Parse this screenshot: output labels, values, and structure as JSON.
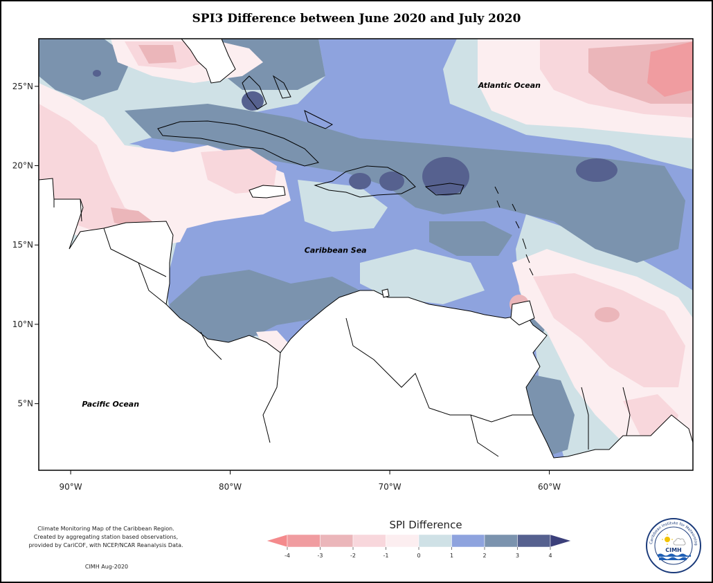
{
  "title": "SPI3 Difference between June 2020 and July 2020",
  "map": {
    "lon_range": [
      -92,
      -51
    ],
    "lat_range": [
      0.8,
      28
    ],
    "longitude_ticks": [
      {
        "value": -90,
        "label": "90°W"
      },
      {
        "value": -80,
        "label": "80°W"
      },
      {
        "value": -70,
        "label": "70°W"
      },
      {
        "value": -60,
        "label": "60°W"
      }
    ],
    "latitude_ticks": [
      {
        "value": 25,
        "label": "25°N"
      },
      {
        "value": 20,
        "label": "20°N"
      },
      {
        "value": 15,
        "label": "15°N"
      },
      {
        "value": 10,
        "label": "10°N"
      },
      {
        "value": 5,
        "label": "5°N"
      }
    ],
    "ocean_labels": {
      "atlantic": "Atlantic Ocean",
      "caribbean": "Caribbean Sea",
      "pacific": "Pacific Ocean"
    },
    "ocean_label_positions": {
      "atlantic": {
        "lon": -62.5,
        "lat": 24.9
      },
      "caribbean": {
        "lon": -73.4,
        "lat": 14.5
      },
      "pacific": {
        "lon": -87.5,
        "lat": 4.8
      }
    }
  },
  "legend": {
    "title": "SPI Difference",
    "tick_labels": [
      "-4",
      "-3",
      "-2",
      "-1",
      "0",
      "1",
      "2",
      "3",
      "4"
    ],
    "colors": {
      "lt_-4": "#f48a8c",
      "-4_-3": "#f09ca0",
      "-3_-2": "#ebb6ba",
      "-2_-1": "#f8d7dc",
      "-1_0": "#fceef0",
      "0_1": "#cfe1e6",
      "1_2": "#8ea3de",
      "2_3": "#7b93ae",
      "3_4": "#56618f",
      "gt_4": "#3b3f7a"
    }
  },
  "credit": {
    "lines": [
      "Climate Monitoring Map of the Caribbean Region.",
      "Created by aggregating station based observations,",
      "provided by CariCOF, with NCEP/NCAR Reanalysis Data."
    ],
    "date": "CIMH Aug-2020"
  },
  "logo": {
    "arc_text": "Caribbean Institute for Meteorology and Hydrology",
    "acronym": "CIMH"
  }
}
